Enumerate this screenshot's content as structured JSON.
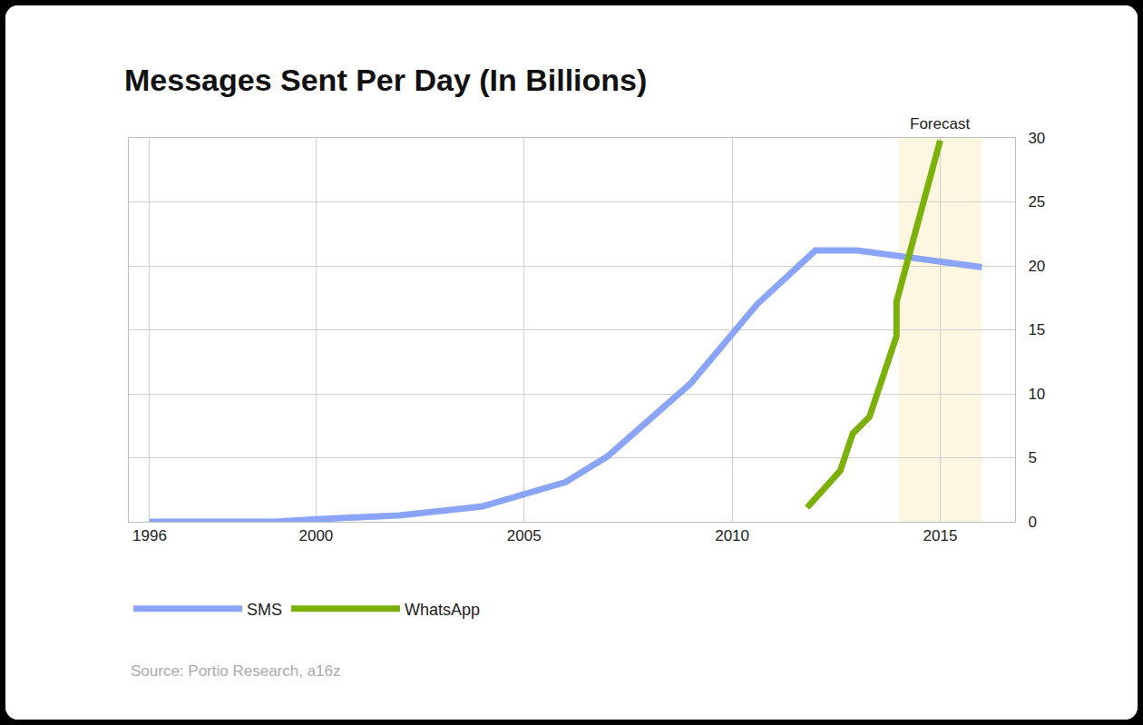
{
  "chart_data": {
    "type": "line",
    "title": "Messages Sent Per Day (In Billions)",
    "source": "Source: Portio Research, a16z",
    "annotations": [
      {
        "text": "Forecast",
        "x0": 2014,
        "x1": 2016
      }
    ],
    "series": [
      {
        "name": "SMS",
        "color": "#8aa4f8",
        "x": [
          1996,
          1999,
          2000,
          2002,
          2004,
          2006,
          2007,
          2009,
          2010.6,
          2012,
          2013,
          2016
        ],
        "values": [
          0,
          0,
          0.2,
          0.5,
          1.2,
          3.1,
          5.1,
          10.8,
          17.0,
          21.2,
          21.2,
          19.9
        ]
      },
      {
        "name": "WhatsApp",
        "color": "#7cb00a",
        "x": [
          2011.8,
          2012.6,
          2012.9,
          2013.3,
          2013.95,
          2013.95,
          2015
        ],
        "values": [
          1.1,
          4.0,
          6.9,
          8.2,
          14.5,
          17.2,
          29.8
        ]
      }
    ],
    "xlim": [
      1995.5,
      2016.8
    ],
    "xticks": [
      1996,
      2000,
      2005,
      2010,
      2015
    ],
    "ylim": [
      0,
      30
    ],
    "yticks": [
      0,
      5,
      10,
      15,
      20,
      25,
      30
    ],
    "grid": true,
    "legend": "bottom"
  }
}
